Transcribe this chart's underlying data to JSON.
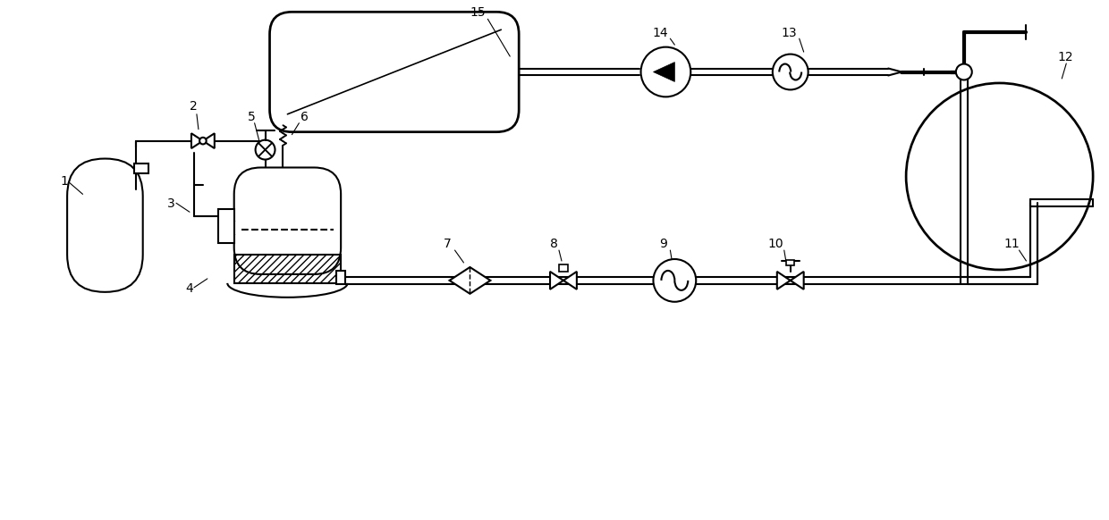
{
  "bg_color": "#ffffff",
  "line_color": "#000000",
  "line_width": 1.5,
  "figsize": [
    12.4,
    5.82
  ],
  "dpi": 100
}
